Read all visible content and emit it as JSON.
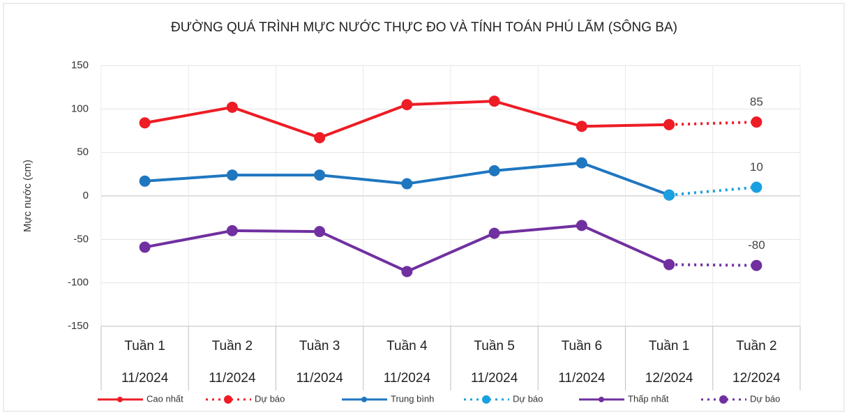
{
  "chart_data": {
    "type": "line",
    "title": "ĐƯỜNG QUÁ TRÌNH MỰC NƯỚC THỰC ĐO VÀ TÍNH TOÁN PHÚ LÃM (SÔNG BA)",
    "ylabel": "Mực nước (cm)",
    "categories": [
      "Tuần 1",
      "Tuần 2",
      "Tuần 3",
      "Tuần 4",
      "Tuần 5",
      "Tuần 6",
      "Tuần 1",
      "Tuần 2"
    ],
    "category_groups": [
      "11/2024",
      "11/2024",
      "11/2024",
      "11/2024",
      "11/2024",
      "11/2024",
      "12/2024",
      "12/2024"
    ],
    "series": [
      {
        "name": "Cao nhất",
        "color": "#ee1c25",
        "dash": "solid",
        "values": [
          84,
          102,
          67,
          105,
          109,
          80,
          82,
          null
        ]
      },
      {
        "name": "Dự báo",
        "color": "#ee1c25",
        "dash": "dotted",
        "label_last": true,
        "values": [
          null,
          null,
          null,
          null,
          null,
          null,
          82,
          85
        ]
      },
      {
        "name": "Trung bình",
        "color": "#1f77c0",
        "dash": "solid",
        "values": [
          17,
          24,
          24,
          14,
          29,
          38,
          1,
          null
        ]
      },
      {
        "name": "Dự báo",
        "color": "#1aa0e0",
        "dash": "dotted",
        "label_last": true,
        "values": [
          null,
          null,
          null,
          null,
          null,
          null,
          1,
          10
        ]
      },
      {
        "name": "Thấp nhất",
        "color": "#7030a0",
        "dash": "solid",
        "values": [
          -59,
          -40,
          -41,
          -87,
          -43,
          -34,
          -79,
          null
        ]
      },
      {
        "name": "Dự báo",
        "color": "#7030a0",
        "dash": "dotted",
        "label_last": true,
        "values": [
          null,
          null,
          null,
          null,
          null,
          null,
          -79,
          -80
        ]
      }
    ],
    "ylim": [
      -150,
      150
    ],
    "yticks": [
      -150,
      -100,
      -50,
      0,
      50,
      100,
      150
    ],
    "grid": true,
    "legend": "bottom"
  }
}
